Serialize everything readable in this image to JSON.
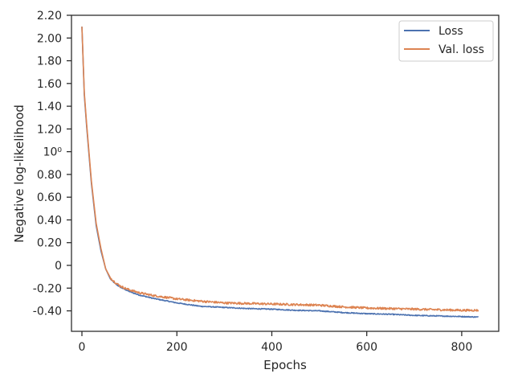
{
  "chart_data": {
    "type": "line",
    "xlabel": "Epochs",
    "ylabel": "Negative log-likelihood",
    "xlim": [
      -22,
      878
    ],
    "ylim": [
      -0.58,
      2.2
    ],
    "x_ticks": [
      {
        "value": 0,
        "label": "0"
      },
      {
        "value": 200,
        "label": "200"
      },
      {
        "value": 400,
        "label": "400"
      },
      {
        "value": 600,
        "label": "600"
      },
      {
        "value": 800,
        "label": "800"
      }
    ],
    "y_ticks": [
      {
        "value": 2.2,
        "label": "2.20"
      },
      {
        "value": 2.0,
        "label": "2.00"
      },
      {
        "value": 1.8,
        "label": "1.80"
      },
      {
        "value": 1.6,
        "label": "1.60"
      },
      {
        "value": 1.4,
        "label": "1.40"
      },
      {
        "value": 1.2,
        "label": "1.20"
      },
      {
        "value": 1.0,
        "label": "10⁰"
      },
      {
        "value": 0.8,
        "label": "0.80"
      },
      {
        "value": 0.6,
        "label": "0.60"
      },
      {
        "value": 0.4,
        "label": "0.40"
      },
      {
        "value": 0.2,
        "label": "0.20"
      },
      {
        "value": 0.0,
        "label": "0"
      },
      {
        "value": -0.2,
        "label": "-0.20"
      },
      {
        "value": -0.4,
        "label": "-0.40"
      }
    ],
    "legend_position": "top-right",
    "grid": false,
    "series": [
      {
        "name": "Loss",
        "color": "#4c72b0",
        "x": [
          0,
          5,
          10,
          20,
          30,
          40,
          50,
          60,
          70,
          80,
          90,
          100,
          120,
          150,
          200,
          250,
          300,
          350,
          400,
          450,
          500,
          550,
          600,
          650,
          700,
          750,
          800,
          835
        ],
        "y": [
          2.1,
          1.5,
          1.22,
          0.72,
          0.35,
          0.13,
          -0.03,
          -0.12,
          -0.16,
          -0.19,
          -0.21,
          -0.23,
          -0.26,
          -0.29,
          -0.33,
          -0.36,
          -0.37,
          -0.38,
          -0.385,
          -0.395,
          -0.4,
          -0.415,
          -0.425,
          -0.43,
          -0.44,
          -0.445,
          -0.45,
          -0.455
        ],
        "noise": 0.004
      },
      {
        "name": "Val. loss",
        "color": "#dd8452",
        "x": [
          0,
          5,
          10,
          20,
          30,
          40,
          50,
          60,
          70,
          80,
          90,
          100,
          120,
          150,
          200,
          250,
          300,
          350,
          400,
          450,
          500,
          550,
          600,
          650,
          700,
          750,
          800,
          835
        ],
        "y": [
          2.1,
          1.52,
          1.24,
          0.74,
          0.37,
          0.15,
          -0.03,
          -0.11,
          -0.15,
          -0.18,
          -0.2,
          -0.215,
          -0.24,
          -0.265,
          -0.295,
          -0.315,
          -0.33,
          -0.335,
          -0.34,
          -0.345,
          -0.35,
          -0.365,
          -0.375,
          -0.38,
          -0.385,
          -0.39,
          -0.395,
          -0.395
        ],
        "noise": 0.009
      }
    ]
  }
}
